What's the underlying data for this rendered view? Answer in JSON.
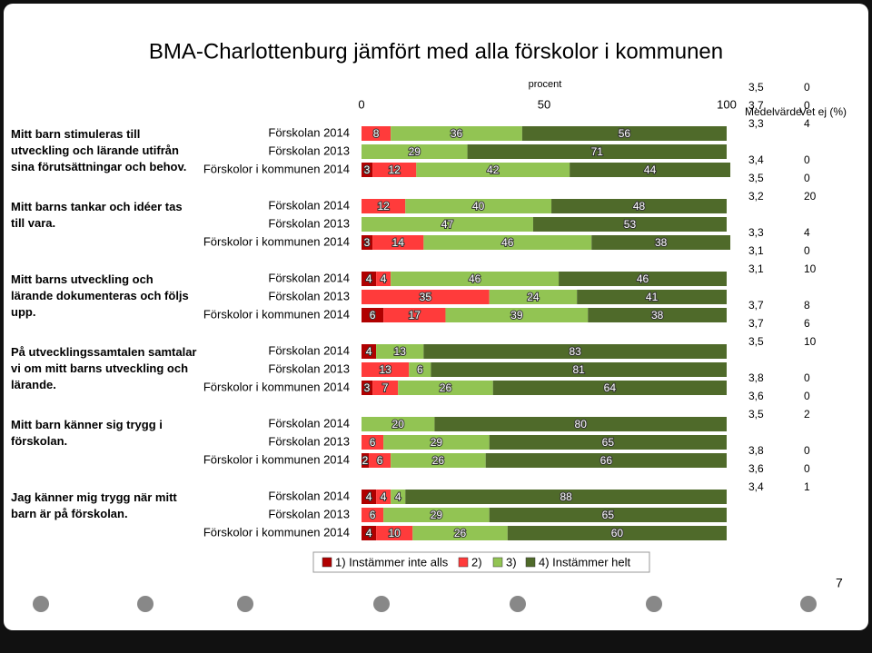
{
  "chart_data": {
    "type": "stacked-bar",
    "title": "BMA-Charlottenburg jämfört med alla förskolor i kommunen",
    "x_label": "procent",
    "xlim": [
      0,
      100
    ],
    "xticks": [
      0,
      50,
      100
    ],
    "groups": [
      "Mitt barn stimuleras till utveckling och lärande utifrån sina förutsättningar och behov.",
      "Mitt barns tankar och idéer tas till vara.",
      "Mitt barns utveckling och lärande dokumenteras och följs upp.",
      "På utvecklingssamtalen samtalar vi om mitt barns utveckling och lärande.",
      "Mitt barn känner sig trygg i förskolan.",
      "Jag känner mig trygg när mitt barn är på förskolan."
    ],
    "categories": [
      "Förskolan 2014",
      "Förskolan 2013",
      "Förskolor i kommunen 2014",
      "Förskolan 2014",
      "Förskolan 2013",
      "Förskolor i kommunen 2014",
      "Förskolan 2014",
      "Förskolan 2013",
      "Förskolor i kommunen 2014",
      "Förskolan 2014",
      "Förskolan 2013",
      "Förskolor i kommunen 2014",
      "Förskolan 2014",
      "Förskolan 2013",
      "Förskolor i kommunen 2014",
      "Förskolan 2014",
      "Förskolan 2013",
      "Förskolor i kommunen 2014"
    ],
    "series": [
      {
        "name": "1) Instämmer inte alls",
        "color": "#b00000",
        "values": [
          0,
          0,
          3,
          0,
          0,
          3,
          4,
          0,
          6,
          4,
          0,
          3,
          0,
          0,
          2,
          4,
          0,
          4
        ]
      },
      {
        "name": "2)",
        "color": "#ff3b3b",
        "values": [
          8,
          0,
          12,
          12,
          0,
          14,
          4,
          35,
          17,
          0,
          13,
          7,
          0,
          6,
          6,
          4,
          6,
          10
        ]
      },
      {
        "name": "3)",
        "color": "#92c453",
        "values": [
          36,
          29,
          42,
          40,
          47,
          46,
          46,
          24,
          39,
          13,
          6,
          26,
          20,
          29,
          26,
          4,
          29,
          26
        ]
      },
      {
        "name": "4) Instämmer helt",
        "color": "#4f6a2a",
        "values": [
          56,
          71,
          44,
          48,
          53,
          38,
          46,
          41,
          38,
          83,
          81,
          64,
          80,
          65,
          66,
          88,
          65,
          60
        ]
      }
    ],
    "mean_header": "Medelvärde",
    "unknown_header": "Vet ej (%)",
    "means": [
      "3,5",
      "3,7",
      "3,3",
      "3,4",
      "3,5",
      "3,2",
      "3,3",
      "3,1",
      "3,1",
      "3,7",
      "3,7",
      "3,5",
      "3,8",
      "3,6",
      "3,5",
      "3,8",
      "3,6",
      "3,4"
    ],
    "unknown": [
      0,
      0,
      4,
      0,
      0,
      20,
      4,
      0,
      10,
      8,
      6,
      10,
      0,
      0,
      2,
      0,
      0,
      1
    ]
  },
  "page_number": "7"
}
